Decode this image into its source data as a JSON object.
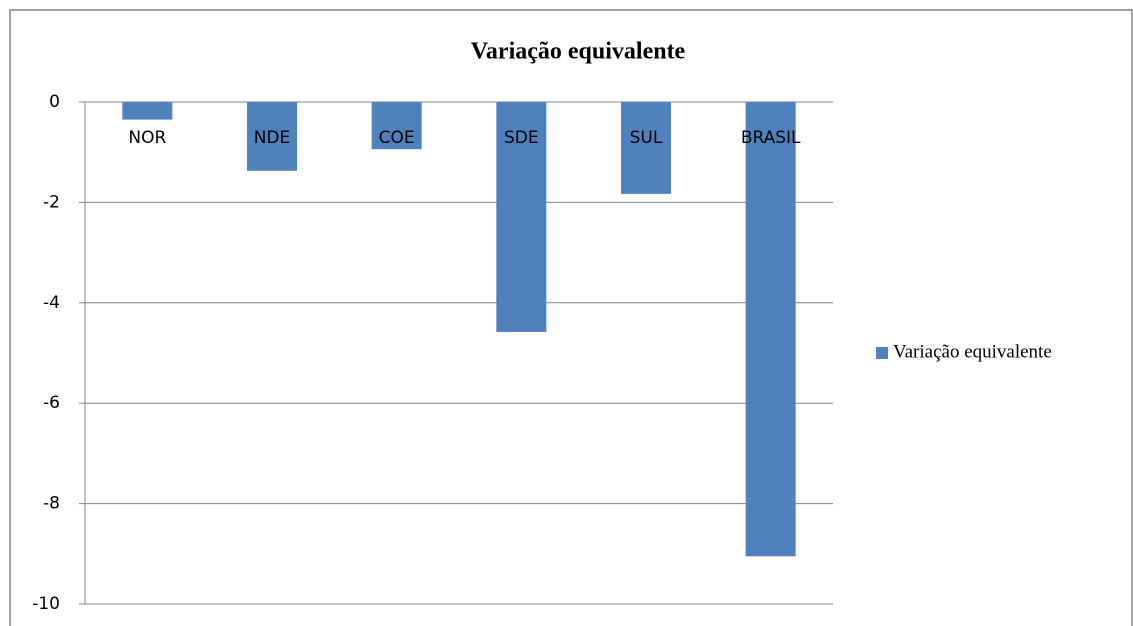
{
  "chart_data": {
    "type": "bar",
    "title": "Variação equivalente",
    "categories": [
      "NOR",
      "NDE",
      "COE",
      "SDE",
      "SUL",
      "BRASIL"
    ],
    "series": [
      {
        "name": "Variação equivalente",
        "color": "#4f81bd",
        "values": [
          -0.35,
          -1.37,
          -0.94,
          -4.58,
          -1.83,
          -9.05
        ]
      }
    ],
    "ylim": [
      -10,
      0
    ],
    "yticks": [
      0,
      -2,
      -4,
      -6,
      -8,
      -10
    ],
    "grid": true,
    "legend": "right"
  }
}
